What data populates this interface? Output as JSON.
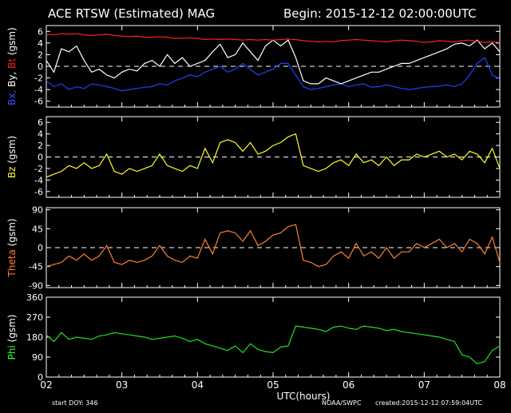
{
  "chart_data": {
    "type": "line",
    "title": "ACE RTSW (Estimated) MAG",
    "begin_label": "Begin: 2015-12-12 02:00:00UTC",
    "x_axis": {
      "label": "UTC(hours)",
      "ticks": [
        "02",
        "03",
        "04",
        "05",
        "06",
        "07",
        "08"
      ],
      "range": [
        2,
        8
      ]
    },
    "footer": {
      "start_doy": "start DOY:  346",
      "source": "NOAA/SWPC",
      "created": "created:2015-12-12 07:59:04UTC"
    },
    "panels": [
      {
        "id": "mag",
        "ylabel_parts": [
          {
            "text": "Bx,",
            "color": "#3050ff"
          },
          {
            "text": " By,",
            "color": "#ffffff"
          },
          {
            "text": " Bt",
            "color": "#ff2020"
          },
          {
            "text": "  (gsm)",
            "color": "#ffffff"
          }
        ],
        "ylim": [
          -7,
          7
        ],
        "yticks": [
          -6,
          -4,
          -2,
          0,
          2,
          4,
          6
        ],
        "zero_line": true,
        "series": [
          {
            "name": "Bx",
            "color": "#2040ff",
            "x": [
              2.0,
              2.1,
              2.2,
              2.3,
              2.4,
              2.5,
              2.6,
              2.7,
              2.8,
              2.9,
              3.0,
              3.1,
              3.2,
              3.3,
              3.4,
              3.5,
              3.6,
              3.7,
              3.8,
              3.9,
              4.0,
              4.1,
              4.2,
              4.3,
              4.4,
              4.5,
              4.6,
              4.7,
              4.8,
              4.9,
              5.0,
              5.1,
              5.2,
              5.3,
              5.4,
              5.5,
              5.6,
              5.7,
              5.8,
              5.9,
              6.0,
              6.1,
              6.2,
              6.3,
              6.4,
              6.5,
              6.6,
              6.7,
              6.8,
              6.9,
              7.0,
              7.1,
              7.2,
              7.3,
              7.4,
              7.5,
              7.6,
              7.7,
              7.8,
              7.9,
              8.0
            ],
            "y": [
              -2.5,
              -3.5,
              -3.0,
              -4.0,
              -3.5,
              -3.8,
              -3.0,
              -3.2,
              -3.5,
              -3.8,
              -4.2,
              -4.0,
              -3.8,
              -3.6,
              -3.5,
              -3.0,
              -3.2,
              -2.5,
              -2.0,
              -1.5,
              -1.8,
              -1.0,
              -0.5,
              0.0,
              -1.0,
              -0.5,
              0.5,
              -0.5,
              -1.5,
              -1.0,
              -0.5,
              0.5,
              0.5,
              -1.5,
              -3.5,
              -4.0,
              -3.8,
              -3.5,
              -3.2,
              -3.0,
              -3.5,
              -3.2,
              -3.0,
              -3.6,
              -3.5,
              -3.2,
              -3.5,
              -3.8,
              -4.0,
              -3.8,
              -3.6,
              -3.5,
              -3.4,
              -3.2,
              -3.5,
              -3.0,
              -1.5,
              0.5,
              1.5,
              -1.5,
              -2.2
            ]
          },
          {
            "name": "By",
            "color": "#ffffff",
            "x": [
              2.0,
              2.1,
              2.2,
              2.3,
              2.4,
              2.5,
              2.6,
              2.7,
              2.8,
              2.9,
              3.0,
              3.1,
              3.2,
              3.3,
              3.4,
              3.5,
              3.6,
              3.7,
              3.8,
              3.9,
              4.0,
              4.1,
              4.2,
              4.3,
              4.4,
              4.5,
              4.6,
              4.7,
              4.8,
              4.9,
              5.0,
              5.1,
              5.2,
              5.3,
              5.4,
              5.5,
              5.6,
              5.7,
              5.8,
              5.9,
              6.0,
              6.1,
              6.2,
              6.3,
              6.4,
              6.5,
              6.6,
              6.7,
              6.8,
              6.9,
              7.0,
              7.1,
              7.2,
              7.3,
              7.4,
              7.5,
              7.6,
              7.7,
              7.8,
              7.9,
              8.0
            ],
            "y": [
              1.0,
              -1.0,
              3.0,
              2.5,
              3.5,
              1.0,
              -1.0,
              -0.5,
              -1.5,
              -2.0,
              -1.0,
              -0.5,
              -0.8,
              0.5,
              1.0,
              0.0,
              2.0,
              0.5,
              1.5,
              0.0,
              0.5,
              1.0,
              2.5,
              3.8,
              1.5,
              2.0,
              4.0,
              2.5,
              1.0,
              3.5,
              4.5,
              3.5,
              4.5,
              1.5,
              -2.5,
              -3.0,
              -3.0,
              -2.0,
              -2.5,
              -3.0,
              -2.5,
              -2.0,
              -1.5,
              -1.0,
              -1.0,
              -0.5,
              0.0,
              0.5,
              0.5,
              1.0,
              1.5,
              2.0,
              2.5,
              3.0,
              3.8,
              4.0,
              3.5,
              4.5,
              3.0,
              4.0,
              2.5
            ]
          },
          {
            "name": "Bt",
            "color": "#ff2020",
            "x": [
              2.0,
              2.1,
              2.2,
              2.3,
              2.4,
              2.5,
              2.6,
              2.7,
              2.8,
              2.9,
              3.0,
              3.1,
              3.2,
              3.3,
              3.4,
              3.5,
              3.6,
              3.7,
              3.8,
              3.9,
              4.0,
              4.1,
              4.2,
              4.3,
              4.4,
              4.5,
              4.6,
              4.7,
              4.8,
              4.9,
              5.0,
              5.1,
              5.2,
              5.3,
              5.4,
              5.5,
              5.6,
              5.7,
              5.8,
              5.9,
              6.0,
              6.1,
              6.2,
              6.3,
              6.4,
              6.5,
              6.6,
              6.7,
              6.8,
              6.9,
              7.0,
              7.1,
              7.2,
              7.3,
              7.4,
              7.5,
              7.6,
              7.7,
              7.8,
              7.9,
              8.0
            ],
            "y": [
              5.5,
              5.4,
              5.6,
              5.5,
              5.6,
              5.4,
              5.3,
              5.4,
              5.5,
              5.3,
              5.2,
              5.1,
              5.2,
              5.0,
              5.0,
              5.1,
              5.0,
              4.8,
              4.8,
              4.9,
              4.8,
              4.6,
              4.7,
              4.6,
              4.7,
              4.6,
              4.5,
              4.6,
              4.5,
              4.6,
              4.5,
              4.6,
              4.7,
              4.6,
              4.4,
              4.3,
              4.2,
              4.3,
              4.2,
              4.4,
              4.5,
              4.6,
              4.5,
              4.4,
              4.3,
              4.2,
              4.4,
              4.5,
              4.4,
              4.3,
              4.1,
              4.2,
              4.4,
              4.3,
              4.2,
              4.4,
              4.5,
              4.3,
              4.1,
              4.2,
              4.1
            ]
          }
        ]
      },
      {
        "id": "bz",
        "ylabel_parts": [
          {
            "text": "Bz",
            "color": "#ffff30"
          },
          {
            "text": "  (gsm)",
            "color": "#ffffff"
          }
        ],
        "ylim": [
          -7,
          7
        ],
        "yticks": [
          -6,
          -4,
          -2,
          0,
          2,
          4,
          6
        ],
        "zero_line": true,
        "series": [
          {
            "name": "Bz",
            "color": "#ffff20",
            "x": [
              2.0,
              2.1,
              2.2,
              2.3,
              2.4,
              2.5,
              2.6,
              2.7,
              2.8,
              2.9,
              3.0,
              3.1,
              3.2,
              3.3,
              3.4,
              3.5,
              3.6,
              3.7,
              3.8,
              3.9,
              4.0,
              4.1,
              4.2,
              4.3,
              4.4,
              4.5,
              4.6,
              4.7,
              4.8,
              4.9,
              5.0,
              5.1,
              5.2,
              5.3,
              5.4,
              5.5,
              5.6,
              5.7,
              5.8,
              5.9,
              6.0,
              6.1,
              6.2,
              6.3,
              6.4,
              6.5,
              6.6,
              6.7,
              6.8,
              6.9,
              7.0,
              7.1,
              7.2,
              7.3,
              7.4,
              7.5,
              7.6,
              7.7,
              7.8,
              7.9,
              8.0
            ],
            "y": [
              -3.5,
              -3.0,
              -2.5,
              -1.5,
              -2.0,
              -1.0,
              -2.0,
              -1.5,
              0.5,
              -2.5,
              -3.0,
              -2.0,
              -2.5,
              -2.0,
              -1.5,
              0.5,
              -1.5,
              -2.0,
              -2.5,
              -1.5,
              -2.0,
              1.5,
              -1.0,
              2.5,
              3.0,
              2.5,
              1.0,
              2.5,
              0.5,
              1.0,
              2.0,
              2.5,
              3.5,
              4.0,
              -1.5,
              -2.0,
              -2.5,
              -2.0,
              -1.0,
              -0.5,
              -1.5,
              0.5,
              -1.0,
              -0.5,
              -1.5,
              0.0,
              -1.5,
              -0.5,
              -0.5,
              0.5,
              0.0,
              0.5,
              1.0,
              0.0,
              0.5,
              -0.5,
              1.0,
              0.5,
              -1.0,
              1.5,
              -2.0
            ]
          }
        ]
      },
      {
        "id": "theta",
        "ylabel_parts": [
          {
            "text": "Theta",
            "color": "#ff8030"
          },
          {
            "text": "  (gsm)",
            "color": "#ffffff"
          }
        ],
        "ylim": [
          -95,
          95
        ],
        "yticks": [
          -90,
          -45,
          0,
          45,
          90
        ],
        "zero_line": true,
        "series": [
          {
            "name": "Theta",
            "color": "#ff8030",
            "x": [
              2.0,
              2.1,
              2.2,
              2.3,
              2.4,
              2.5,
              2.6,
              2.7,
              2.8,
              2.9,
              3.0,
              3.1,
              3.2,
              3.3,
              3.4,
              3.5,
              3.6,
              3.7,
              3.8,
              3.9,
              4.0,
              4.1,
              4.2,
              4.3,
              4.4,
              4.5,
              4.6,
              4.7,
              4.8,
              4.9,
              5.0,
              5.1,
              5.2,
              5.3,
              5.4,
              5.5,
              5.6,
              5.7,
              5.8,
              5.9,
              6.0,
              6.1,
              6.2,
              6.3,
              6.4,
              6.5,
              6.6,
              6.7,
              6.8,
              6.9,
              7.0,
              7.1,
              7.2,
              7.3,
              7.4,
              7.5,
              7.6,
              7.7,
              7.8,
              7.9,
              8.0
            ],
            "y": [
              -45,
              -40,
              -35,
              -20,
              -30,
              -15,
              -30,
              -20,
              5,
              -35,
              -40,
              -30,
              -35,
              -30,
              -20,
              5,
              -20,
              -30,
              -35,
              -20,
              -25,
              20,
              -15,
              35,
              40,
              35,
              15,
              40,
              5,
              15,
              30,
              35,
              50,
              55,
              -30,
              -35,
              -45,
              -40,
              -20,
              -10,
              -25,
              10,
              -20,
              -10,
              -25,
              0,
              -25,
              -10,
              -10,
              10,
              0,
              10,
              20,
              0,
              10,
              -10,
              20,
              10,
              -15,
              25,
              -35
            ]
          }
        ]
      },
      {
        "id": "phi",
        "ylabel_parts": [
          {
            "text": "Phi",
            "color": "#30ff30"
          },
          {
            "text": "  (gsm)",
            "color": "#ffffff"
          }
        ],
        "ylim": [
          0,
          360
        ],
        "yticks": [
          0,
          90,
          180,
          270,
          360
        ],
        "zero_line": false,
        "series": [
          {
            "name": "Phi",
            "color": "#20e020",
            "x": [
              2.0,
              2.1,
              2.2,
              2.3,
              2.4,
              2.5,
              2.6,
              2.7,
              2.8,
              2.9,
              3.0,
              3.1,
              3.2,
              3.3,
              3.4,
              3.5,
              3.6,
              3.7,
              3.8,
              3.9,
              4.0,
              4.1,
              4.2,
              4.3,
              4.4,
              4.5,
              4.6,
              4.7,
              4.8,
              4.9,
              5.0,
              5.1,
              5.2,
              5.3,
              5.4,
              5.5,
              5.6,
              5.7,
              5.8,
              5.9,
              6.0,
              6.1,
              6.2,
              6.3,
              6.4,
              6.5,
              6.6,
              6.7,
              6.8,
              6.9,
              7.0,
              7.1,
              7.2,
              7.3,
              7.4,
              7.5,
              7.6,
              7.7,
              7.8,
              7.9,
              8.0
            ],
            "y": [
              190,
              160,
              200,
              170,
              180,
              175,
              170,
              185,
              190,
              200,
              195,
              190,
              185,
              180,
              170,
              175,
              180,
              185,
              175,
              160,
              170,
              150,
              140,
              130,
              120,
              140,
              110,
              150,
              125,
              115,
              110,
              135,
              140,
              230,
              225,
              220,
              215,
              205,
              225,
              230,
              220,
              215,
              230,
              225,
              220,
              210,
              215,
              205,
              200,
              195,
              190,
              185,
              180,
              170,
              160,
              100,
              90,
              60,
              70,
              120,
              140
            ]
          }
        ]
      }
    ]
  }
}
